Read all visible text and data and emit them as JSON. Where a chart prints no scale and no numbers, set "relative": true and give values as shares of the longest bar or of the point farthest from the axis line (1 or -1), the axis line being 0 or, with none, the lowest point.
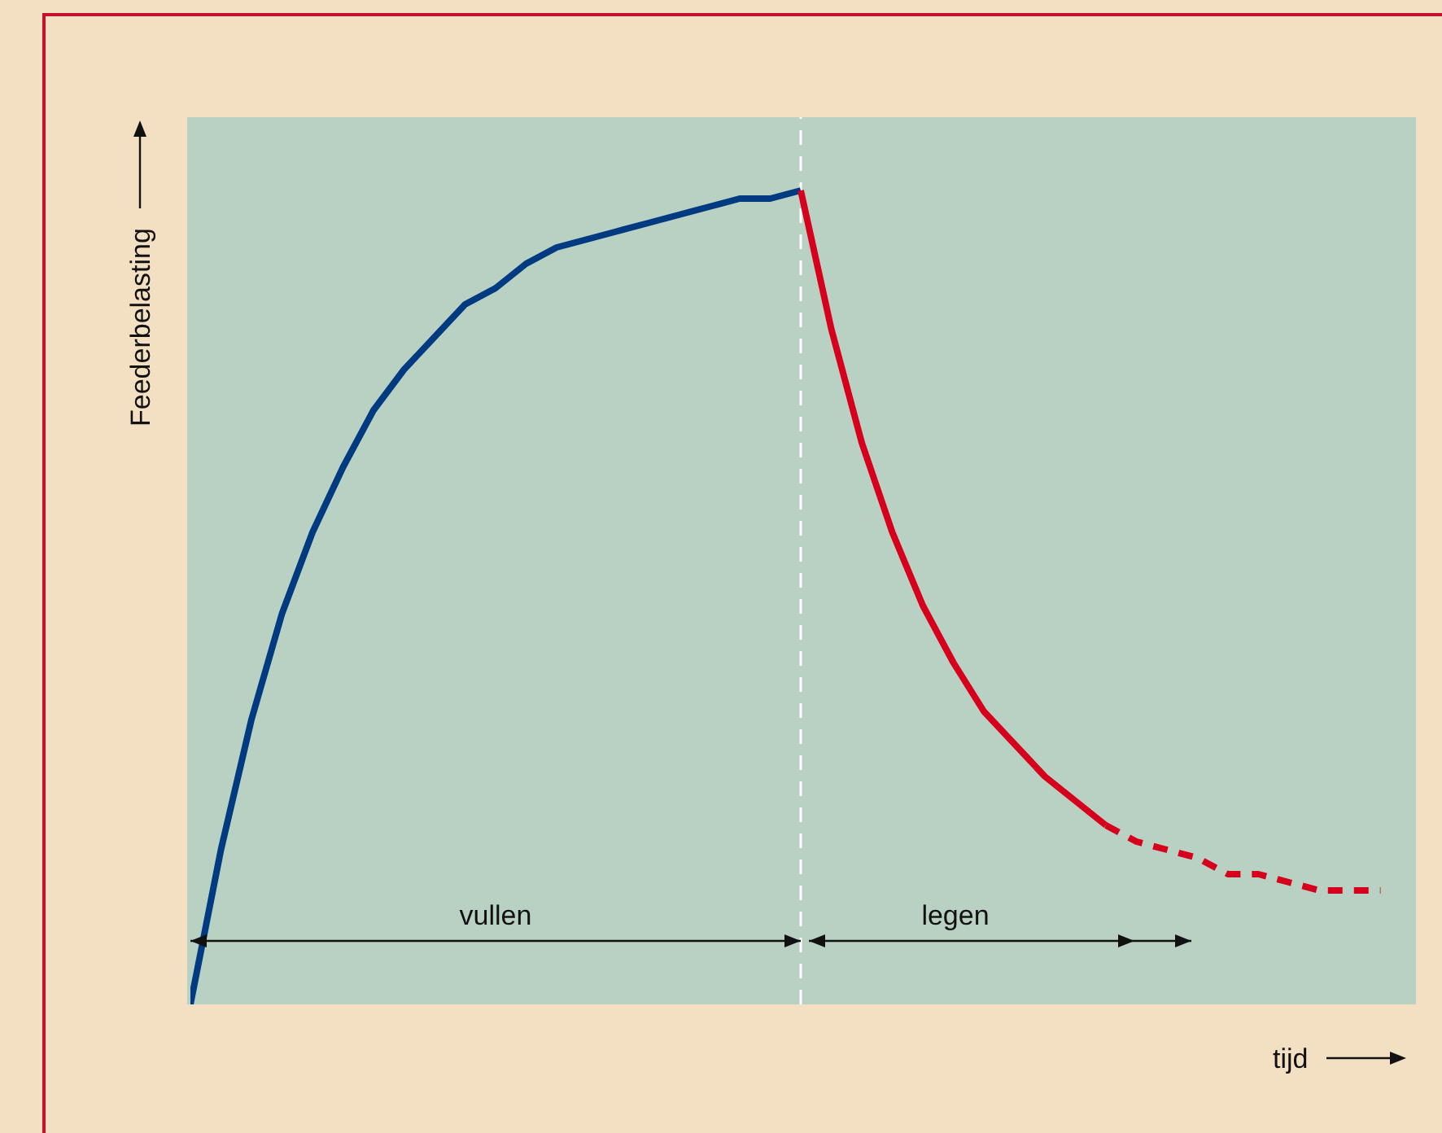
{
  "chart_data": {
    "type": "line",
    "relative": true,
    "xlabel": "tijd",
    "ylabel": "Feederbelasting",
    "annotations": [
      "vullen",
      "legen"
    ],
    "categories": [
      null,
      null,
      null,
      null,
      null,
      null,
      null,
      null,
      null,
      null,
      null,
      null,
      null,
      null,
      null,
      null,
      null,
      null,
      null,
      null,
      null,
      null,
      null,
      null,
      null,
      null,
      null,
      null,
      null,
      null,
      null,
      null,
      null,
      null,
      null,
      null,
      null,
      null,
      null,
      null
    ],
    "marker": "none",
    "series": [
      {
        "color": "#003a80",
        "line_style": "solid",
        "values": [
          0,
          0.19,
          0.35,
          0.48,
          0.58,
          0.66,
          0.73,
          0.78,
          0.82,
          0.86,
          0.88,
          0.91,
          0.93,
          0.94,
          0.95,
          0.96,
          0.97,
          0.98,
          0.99,
          0.99,
          1,
          null,
          null,
          null,
          null,
          null,
          null,
          null,
          null,
          null,
          null,
          null,
          null,
          null,
          null,
          null,
          null,
          null,
          null,
          null
        ]
      },
      {
        "color": "#d6001c",
        "line_style": "solid",
        "values": [
          null,
          null,
          null,
          null,
          null,
          null,
          null,
          null,
          null,
          null,
          null,
          null,
          null,
          null,
          null,
          null,
          null,
          null,
          null,
          null,
          1,
          0.83,
          0.69,
          0.58,
          0.49,
          0.42,
          0.36,
          0.32,
          0.28,
          0.25,
          0.22,
          null,
          null,
          null,
          null,
          null,
          null,
          null,
          null,
          null
        ]
      },
      {
        "color": "#d6001c",
        "line_style": "dashed",
        "values": [
          null,
          null,
          null,
          null,
          null,
          null,
          null,
          null,
          null,
          null,
          null,
          null,
          null,
          null,
          null,
          null,
          null,
          null,
          null,
          null,
          null,
          null,
          null,
          null,
          null,
          null,
          null,
          null,
          null,
          null,
          0.22,
          0.2,
          0.19,
          0.18,
          0.16,
          0.16,
          0.15,
          0.14,
          0.14,
          0.14
        ]
      }
    ],
    "ref_lines": [
      {
        "axis": "x",
        "color": "#ffffff",
        "line_style": "dashed"
      }
    ]
  }
}
